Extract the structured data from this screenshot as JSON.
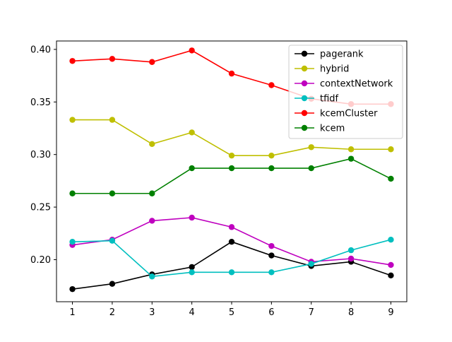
{
  "chart_data": {
    "type": "line",
    "title": "",
    "xlabel": "",
    "ylabel": "",
    "x": [
      1,
      2,
      3,
      4,
      5,
      6,
      7,
      8,
      9
    ],
    "xlim": [
      0.6,
      9.4
    ],
    "ylim": [
      0.16,
      0.408
    ],
    "xticks": [
      1,
      2,
      3,
      4,
      5,
      6,
      7,
      8,
      9
    ],
    "yticks": [
      0.2,
      0.25,
      0.3,
      0.35,
      0.4
    ],
    "ytick_labels": [
      "0.20",
      "0.25",
      "0.30",
      "0.35",
      "0.40"
    ],
    "grid": false,
    "legend_position": "top-right",
    "series": [
      {
        "name": "pagerank",
        "color": "#000000",
        "values": [
          0.172,
          0.177,
          0.186,
          0.193,
          0.217,
          0.204,
          0.194,
          0.198,
          0.185
        ]
      },
      {
        "name": "hybrid",
        "color": "#bfbf00",
        "values": [
          0.333,
          0.333,
          0.31,
          0.321,
          0.299,
          0.299,
          0.307,
          0.305,
          0.305
        ]
      },
      {
        "name": "contextNetwork",
        "color": "#bf00bf",
        "values": [
          0.214,
          0.219,
          0.237,
          0.24,
          0.231,
          0.213,
          0.198,
          0.201,
          0.195
        ]
      },
      {
        "name": "tfidf",
        "color": "#00bfbf",
        "values": [
          0.217,
          0.218,
          0.184,
          0.188,
          0.188,
          0.188,
          0.196,
          0.209,
          0.219
        ]
      },
      {
        "name": "kcemCluster",
        "color": "#ff0000",
        "values": [
          0.389,
          0.391,
          0.388,
          0.399,
          0.377,
          0.366,
          0.353,
          0.348,
          0.348
        ]
      },
      {
        "name": "kcem",
        "color": "#008000",
        "values": [
          0.263,
          0.263,
          0.263,
          0.287,
          0.287,
          0.287,
          0.287,
          0.296,
          0.277
        ]
      }
    ]
  }
}
